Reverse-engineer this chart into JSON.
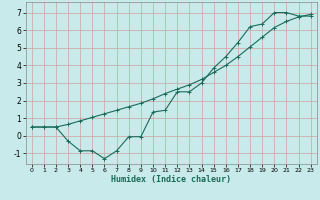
{
  "xlabel": "Humidex (Indice chaleur)",
  "bg_color": "#c8eaea",
  "grid_color": "#a8d0d0",
  "line_color": "#1a6b5a",
  "xlim": [
    -0.5,
    23.5
  ],
  "ylim": [
    -1.6,
    7.6
  ],
  "xticks": [
    0,
    1,
    2,
    3,
    4,
    5,
    6,
    7,
    8,
    9,
    10,
    11,
    12,
    13,
    14,
    15,
    16,
    17,
    18,
    19,
    20,
    21,
    22,
    23
  ],
  "yticks": [
    -1,
    0,
    1,
    2,
    3,
    4,
    5,
    6,
    7
  ],
  "line1_x": [
    0,
    1,
    2,
    3,
    4,
    5,
    6,
    7,
    8,
    9,
    10,
    11,
    12,
    13,
    14,
    15,
    16,
    17,
    18,
    19,
    20,
    21,
    22,
    23
  ],
  "line1_y": [
    0.5,
    0.5,
    0.5,
    -0.3,
    -0.85,
    -0.85,
    -1.3,
    -0.85,
    -0.05,
    -0.05,
    1.35,
    1.45,
    2.5,
    2.5,
    3.0,
    3.85,
    4.5,
    5.3,
    6.2,
    6.35,
    7.0,
    7.0,
    6.8,
    6.8
  ],
  "line2_x": [
    0,
    1,
    2,
    3,
    4,
    5,
    6,
    7,
    8,
    9,
    10,
    11,
    12,
    13,
    14,
    15,
    16,
    17,
    18,
    19,
    20,
    21,
    22,
    23
  ],
  "line2_y": [
    0.5,
    0.5,
    0.5,
    0.65,
    0.85,
    1.05,
    1.25,
    1.45,
    1.65,
    1.85,
    2.1,
    2.4,
    2.65,
    2.9,
    3.2,
    3.6,
    4.0,
    4.5,
    5.05,
    5.6,
    6.15,
    6.5,
    6.75,
    6.9
  ]
}
